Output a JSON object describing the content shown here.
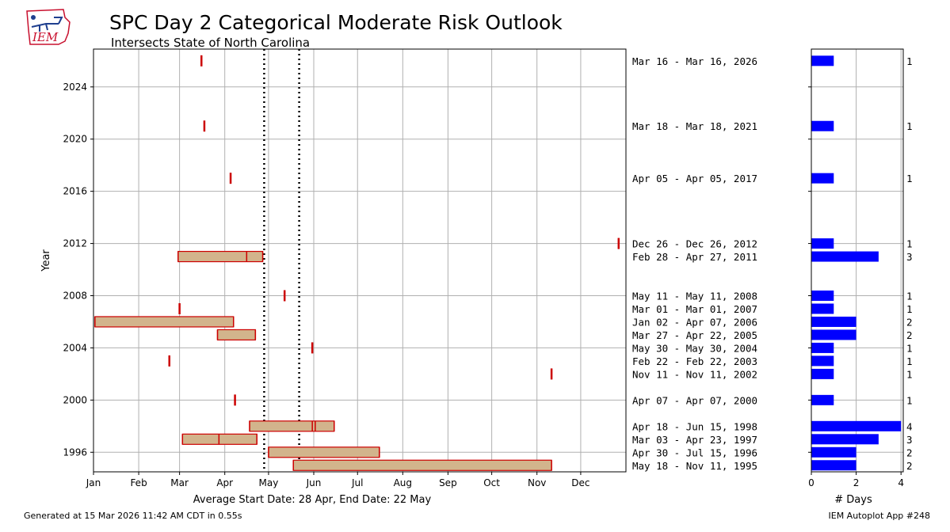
{
  "header": {
    "title": "SPC Day 2 Categorical Moderate Risk Outlook",
    "subtitle": "Intersects State of North Carolina",
    "logo_text": "IEM"
  },
  "colors": {
    "bar_fill": "#d2b48c",
    "bar_edge": "#cc0000",
    "count_bar": "#0000ff",
    "grid": "#b0b0b0"
  },
  "footer": {
    "generated": "Generated at 15 Mar 2026 11:42 AM CDT in 0.55s",
    "app": "IEM Autoplot App #248"
  },
  "chart_data": [
    {
      "type": "gantt",
      "ylabel": "Year",
      "xlabel": "Average Start Date: 28 Apr, End Date: 22 May",
      "x_unit": "day of year",
      "xlim": [
        1,
        366
      ],
      "ylim": [
        1994.5,
        2026.9
      ],
      "x_ticks": [
        {
          "day": 1,
          "label": "Jan"
        },
        {
          "day": 32,
          "label": "Feb"
        },
        {
          "day": 60,
          "label": "Mar"
        },
        {
          "day": 91,
          "label": "Apr"
        },
        {
          "day": 121,
          "label": "May"
        },
        {
          "day": 152,
          "label": "Jun"
        },
        {
          "day": 182,
          "label": "Jul"
        },
        {
          "day": 213,
          "label": "Aug"
        },
        {
          "day": 244,
          "label": "Sep"
        },
        {
          "day": 274,
          "label": "Oct"
        },
        {
          "day": 305,
          "label": "Nov"
        },
        {
          "day": 335,
          "label": "Dec"
        }
      ],
      "y_ticks": [
        1996,
        2000,
        2004,
        2008,
        2012,
        2016,
        2020,
        2024
      ],
      "avg_start_day": 118,
      "avg_end_day": 142,
      "events": [
        {
          "year": 2026,
          "start": 75,
          "end": 75,
          "label": "Mar 16 - Mar 16, 2026",
          "days": 1
        },
        {
          "year": 2021,
          "start": 77,
          "end": 77,
          "label": "Mar 18 - Mar 18, 2021",
          "days": 1
        },
        {
          "year": 2017,
          "start": 95,
          "end": 95,
          "label": "Apr 05 - Apr 05, 2017",
          "days": 1
        },
        {
          "year": 2012,
          "start": 361,
          "end": 361,
          "label": "Dec 26 - Dec 26, 2012",
          "days": 1
        },
        {
          "year": 2011,
          "start": 59,
          "end": 117,
          "label": "Feb 28 - Apr 27, 2011",
          "days": 3,
          "marks": [
            59,
            106,
            117
          ]
        },
        {
          "year": 2008,
          "start": 132,
          "end": 132,
          "label": "May 11 - May 11, 2008",
          "days": 1
        },
        {
          "year": 2007,
          "start": 60,
          "end": 60,
          "label": "Mar 01 - Mar 01, 2007",
          "days": 1
        },
        {
          "year": 2006,
          "start": 2,
          "end": 97,
          "label": "Jan 02 - Apr 07, 2006",
          "days": 2,
          "marks": [
            2,
            97
          ]
        },
        {
          "year": 2005,
          "start": 86,
          "end": 112,
          "label": "Mar 27 - Apr 22, 2005",
          "days": 2,
          "marks": [
            86,
            112
          ]
        },
        {
          "year": 2004,
          "start": 151,
          "end": 151,
          "label": "May 30 - May 30, 2004",
          "days": 1
        },
        {
          "year": 2003,
          "start": 53,
          "end": 53,
          "label": "Feb 22 - Feb 22, 2003",
          "days": 1
        },
        {
          "year": 2002,
          "start": 315,
          "end": 315,
          "label": "Nov 11 - Nov 11, 2002",
          "days": 1
        },
        {
          "year": 2000,
          "start": 98,
          "end": 98,
          "label": "Apr 07 - Apr 07, 2000",
          "days": 1
        },
        {
          "year": 1998,
          "start": 108,
          "end": 166,
          "label": "Apr 18 - Jun 15, 1998",
          "days": 4,
          "marks": [
            108,
            151,
            153,
            166
          ]
        },
        {
          "year": 1997,
          "start": 62,
          "end": 113,
          "label": "Mar 03 - Apr 23, 1997",
          "days": 3,
          "marks": [
            62,
            87,
            113
          ]
        },
        {
          "year": 1996,
          "start": 121,
          "end": 197,
          "label": "Apr 30 - Jul 15, 1996",
          "days": 2,
          "marks": [
            121,
            197
          ]
        },
        {
          "year": 1995,
          "start": 138,
          "end": 315,
          "label": "May 18 - Nov 11, 1995",
          "days": 2,
          "marks": [
            138,
            315
          ]
        }
      ]
    },
    {
      "type": "bar",
      "orientation": "horizontal",
      "xlabel": "# Days",
      "xlim": [
        0,
        4.1
      ],
      "x_ticks": [
        0,
        2,
        4
      ],
      "note": "count of days per year, same y axis as the gantt"
    }
  ]
}
